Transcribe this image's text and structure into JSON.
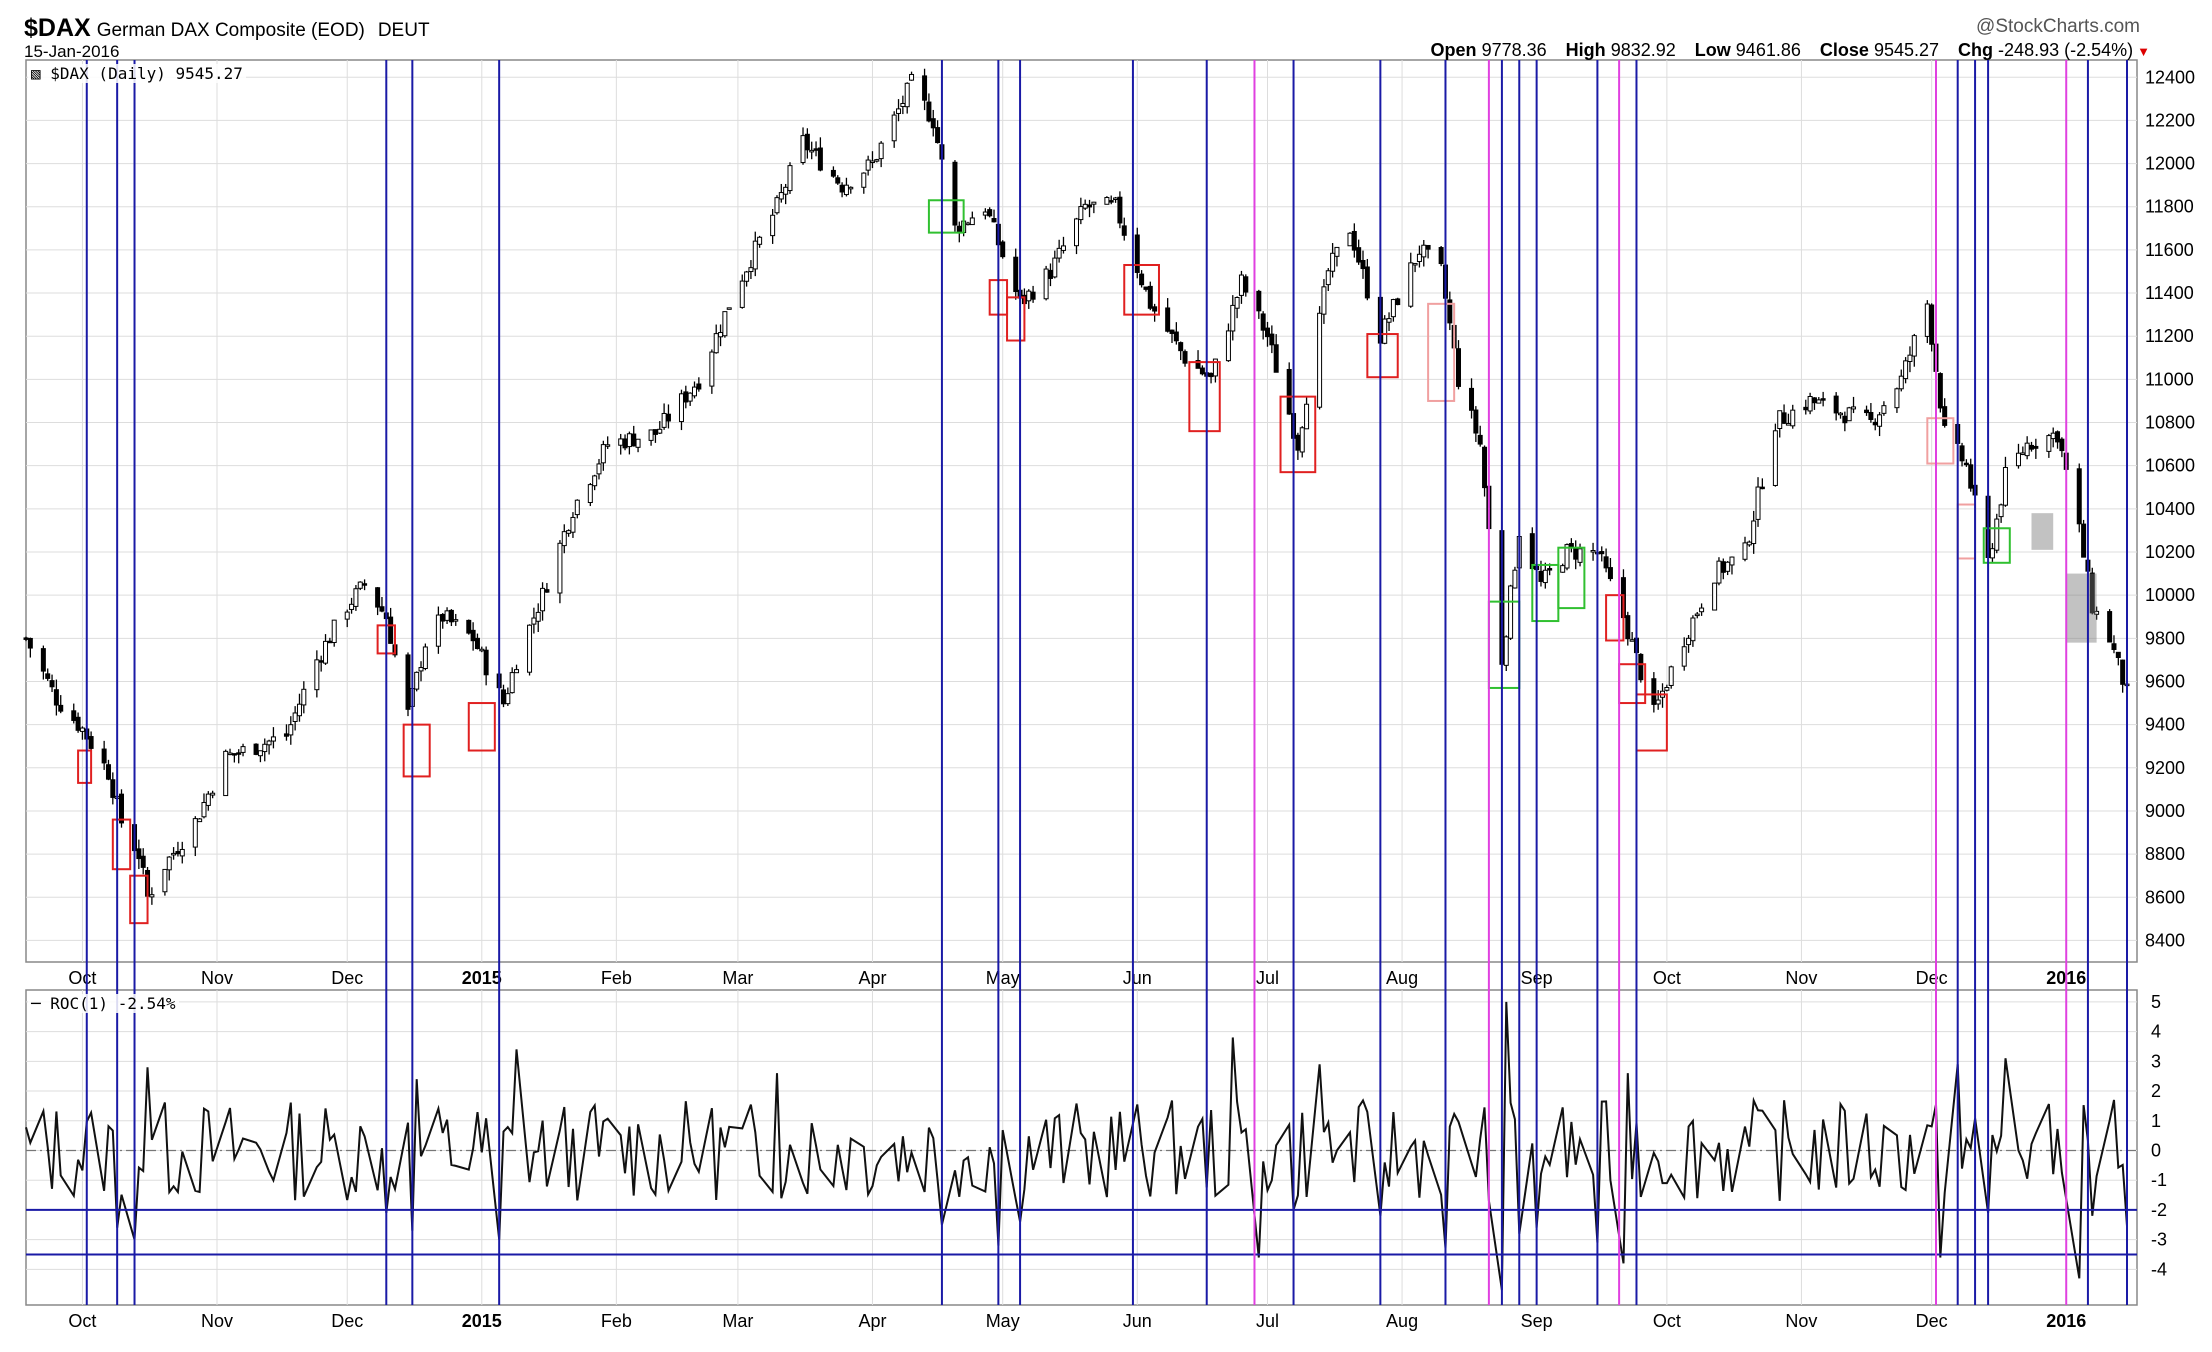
{
  "header": {
    "symbol": "$DAX",
    "name": "German DAX Composite (EOD)",
    "exchange": "DEUT",
    "date": "15-Jan-2016",
    "brand": "@StockCharts.com",
    "open_label": "Open",
    "open": "9778.36",
    "high_label": "High",
    "high": "9832.92",
    "low_label": "Low",
    "low": "9461.86",
    "close_label": "Close",
    "close": "9545.27",
    "chg_label": "Chg",
    "chg": "-248.93 (-2.54%)"
  },
  "price_panel": {
    "legend": "$DAX (Daily) 9545.27"
  },
  "roc_panel": {
    "legend": "ROC(1) -2.54%"
  },
  "colors": {
    "blue_line": "#1a1aa6",
    "magenta_line": "#e040e0",
    "red_box": "#e02020",
    "green_box": "#30c030",
    "pink_box": "#f0a0a0",
    "grey_box": "#999999",
    "candle": "#000000",
    "grid": "#dddddd"
  },
  "chart_data": [
    {
      "type": "candlestick",
      "title": "$DAX German DAX Composite (EOD) DEUT",
      "x_start": "2014-09-18",
      "x_end": "2016-01-15",
      "x_ticks": [
        {
          "date": "2014-10-01",
          "label": "Oct"
        },
        {
          "date": "2014-11-01",
          "label": "Nov"
        },
        {
          "date": "2014-12-01",
          "label": "Dec"
        },
        {
          "date": "2015-01-01",
          "label": "2015"
        },
        {
          "date": "2015-02-01",
          "label": "Feb"
        },
        {
          "date": "2015-03-01",
          "label": "Mar"
        },
        {
          "date": "2015-04-01",
          "label": "Apr"
        },
        {
          "date": "2015-05-01",
          "label": "May"
        },
        {
          "date": "2015-06-01",
          "label": "Jun"
        },
        {
          "date": "2015-07-01",
          "label": "Jul"
        },
        {
          "date": "2015-08-01",
          "label": "Aug"
        },
        {
          "date": "2015-09-01",
          "label": "Sep"
        },
        {
          "date": "2015-10-01",
          "label": "Oct"
        },
        {
          "date": "2015-11-01",
          "label": "Nov"
        },
        {
          "date": "2015-12-01",
          "label": "Dec"
        },
        {
          "date": "2016-01-01",
          "label": "2016"
        }
      ],
      "ylim": [
        8300,
        12480
      ],
      "y_ticks": [
        8400,
        8600,
        8800,
        9000,
        9200,
        9400,
        9600,
        9800,
        10000,
        10200,
        10400,
        10600,
        10800,
        11000,
        11200,
        11400,
        11600,
        11800,
        12000,
        12200,
        12400
      ],
      "close_path": [
        [
          "2014-09-18",
          9800
        ],
        [
          "2014-09-25",
          9520
        ],
        [
          "2014-10-01",
          9380
        ],
        [
          "2014-10-07",
          9180
        ],
        [
          "2014-10-10",
          8950
        ],
        [
          "2014-10-14",
          8800
        ],
        [
          "2014-10-16",
          8600
        ],
        [
          "2014-10-20",
          8750
        ],
        [
          "2014-10-27",
          8950
        ],
        [
          "2014-11-03",
          9250
        ],
        [
          "2014-11-10",
          9300
        ],
        [
          "2014-11-17",
          9350
        ],
        [
          "2014-11-24",
          9700
        ],
        [
          "2014-12-01",
          9950
        ],
        [
          "2014-12-05",
          10050
        ],
        [
          "2014-12-10",
          9900
        ],
        [
          "2014-12-15",
          9450
        ],
        [
          "2014-12-19",
          9780
        ],
        [
          "2014-12-23",
          9900
        ],
        [
          "2014-12-30",
          9800
        ],
        [
          "2015-01-06",
          9500
        ],
        [
          "2015-01-09",
          9700
        ],
        [
          "2015-01-15",
          10000
        ],
        [
          "2015-01-22",
          10400
        ],
        [
          "2015-01-30",
          10700
        ],
        [
          "2015-02-10",
          10750
        ],
        [
          "2015-02-20",
          11000
        ],
        [
          "2015-02-28",
          11400
        ],
        [
          "2015-03-10",
          11800
        ],
        [
          "2015-03-16",
          12100
        ],
        [
          "2015-03-25",
          11900
        ],
        [
          "2015-04-01",
          12000
        ],
        [
          "2015-04-10",
          12370
        ],
        [
          "2015-04-15",
          12200
        ],
        [
          "2015-04-20",
          11700
        ],
        [
          "2015-04-27",
          11800
        ],
        [
          "2015-05-05",
          11350
        ],
        [
          "2015-05-12",
          11500
        ],
        [
          "2015-05-20",
          11800
        ],
        [
          "2015-05-27",
          11800
        ],
        [
          "2015-06-04",
          11350
        ],
        [
          "2015-06-12",
          11100
        ],
        [
          "2015-06-18",
          11000
        ],
        [
          "2015-06-25",
          11450
        ],
        [
          "2015-07-01",
          11200
        ],
        [
          "2015-07-08",
          10700
        ],
        [
          "2015-07-15",
          11500
        ],
        [
          "2015-07-20",
          11700
        ],
        [
          "2015-07-27",
          11200
        ],
        [
          "2015-08-05",
          11600
        ],
        [
          "2015-08-10",
          11500
        ],
        [
          "2015-08-14",
          11000
        ],
        [
          "2015-08-19",
          10700
        ],
        [
          "2015-08-24",
          9700
        ],
        [
          "2015-08-28",
          10300
        ],
        [
          "2015-09-02",
          10050
        ],
        [
          "2015-09-08",
          10200
        ],
        [
          "2015-09-15",
          10200
        ],
        [
          "2015-09-21",
          9900
        ],
        [
          "2015-09-28",
          9450
        ],
        [
          "2015-10-05",
          9800
        ],
        [
          "2015-10-12",
          10100
        ],
        [
          "2015-10-19",
          10200
        ],
        [
          "2015-10-26",
          10800
        ],
        [
          "2015-11-03",
          10900
        ],
        [
          "2015-11-10",
          10850
        ],
        [
          "2015-11-17",
          10800
        ],
        [
          "2015-11-24",
          11000
        ],
        [
          "2015-11-30",
          11350
        ],
        [
          "2015-12-04",
          10750
        ],
        [
          "2015-12-09",
          10600
        ],
        [
          "2015-12-14",
          10150
        ],
        [
          "2015-12-18",
          10550
        ],
        [
          "2015-12-23",
          10700
        ],
        [
          "2015-12-30",
          10750
        ],
        [
          "2016-01-04",
          10300
        ],
        [
          "2016-01-07",
          9950
        ],
        [
          "2016-01-11",
          9800
        ],
        [
          "2016-01-15",
          9545.27
        ]
      ],
      "vertical_lines_blue": [
        "2014-10-02",
        "2014-10-09",
        "2014-10-13",
        "2014-12-10",
        "2014-12-16",
        "2015-01-05",
        "2015-04-17",
        "2015-04-30",
        "2015-05-05",
        "2015-05-31",
        "2015-06-17",
        "2015-07-07",
        "2015-07-27",
        "2015-08-11",
        "2015-08-24",
        "2015-08-28",
        "2015-09-01",
        "2015-09-15",
        "2015-09-24",
        "2015-12-07",
        "2015-12-11",
        "2015-12-14",
        "2016-01-06",
        "2016-01-15"
      ],
      "vertical_lines_magenta": [
        "2015-06-28",
        "2015-08-21",
        "2015-09-20",
        "2015-12-02",
        "2016-01-01"
      ],
      "boxes": [
        {
          "d1": "2014-09-30",
          "d2": "2014-10-03",
          "lo": 9130,
          "hi": 9280,
          "color": "red"
        },
        {
          "d1": "2014-10-08",
          "d2": "2014-10-12",
          "lo": 8730,
          "hi": 8960,
          "color": "red"
        },
        {
          "d1": "2014-10-12",
          "d2": "2014-10-16",
          "lo": 8480,
          "hi": 8700,
          "color": "red"
        },
        {
          "d1": "2014-12-08",
          "d2": "2014-12-12",
          "lo": 9730,
          "hi": 9860,
          "color": "red"
        },
        {
          "d1": "2014-12-14",
          "d2": "2014-12-20",
          "lo": 9160,
          "hi": 9400,
          "color": "red"
        },
        {
          "d1": "2014-12-29",
          "d2": "2015-01-04",
          "lo": 9280,
          "hi": 9500,
          "color": "red"
        },
        {
          "d1": "2015-04-14",
          "d2": "2015-04-22",
          "lo": 11680,
          "hi": 11830,
          "color": "green"
        },
        {
          "d1": "2015-04-28",
          "d2": "2015-05-02",
          "lo": 11300,
          "hi": 11460,
          "color": "red"
        },
        {
          "d1": "2015-05-02",
          "d2": "2015-05-06",
          "lo": 11180,
          "hi": 11380,
          "color": "red"
        },
        {
          "d1": "2015-05-29",
          "d2": "2015-06-06",
          "lo": 11300,
          "hi": 11530,
          "color": "red"
        },
        {
          "d1": "2015-06-13",
          "d2": "2015-06-20",
          "lo": 10760,
          "hi": 11080,
          "color": "red"
        },
        {
          "d1": "2015-07-04",
          "d2": "2015-07-12",
          "lo": 10570,
          "hi": 10920,
          "color": "red"
        },
        {
          "d1": "2015-07-24",
          "d2": "2015-07-31",
          "lo": 11010,
          "hi": 11210,
          "color": "red"
        },
        {
          "d1": "2015-08-07",
          "d2": "2015-08-13",
          "lo": 10900,
          "hi": 11350,
          "color": "pink"
        },
        {
          "d1": "2015-08-21",
          "d2": "2015-08-28",
          "lo": 9570,
          "hi": 9970,
          "color": "green"
        },
        {
          "d1": "2015-08-31",
          "d2": "2015-09-06",
          "lo": 9880,
          "hi": 10140,
          "color": "green"
        },
        {
          "d1": "2015-09-06",
          "d2": "2015-09-12",
          "lo": 9940,
          "hi": 10220,
          "color": "green"
        },
        {
          "d1": "2015-09-17",
          "d2": "2015-09-21",
          "lo": 9790,
          "hi": 10000,
          "color": "red"
        },
        {
          "d1": "2015-09-20",
          "d2": "2015-09-26",
          "lo": 9500,
          "hi": 9680,
          "color": "red"
        },
        {
          "d1": "2015-09-24",
          "d2": "2015-10-01",
          "lo": 9280,
          "hi": 9540,
          "color": "red"
        },
        {
          "d1": "2015-11-30",
          "d2": "2015-12-06",
          "lo": 10610,
          "hi": 10820,
          "color": "pink"
        },
        {
          "d1": "2015-12-07",
          "d2": "2015-12-11",
          "lo": 10170,
          "hi": 10420,
          "color": "pink"
        },
        {
          "d1": "2015-12-13",
          "d2": "2015-12-19",
          "lo": 10150,
          "hi": 10310,
          "color": "green"
        },
        {
          "d1": "2015-12-24",
          "d2": "2015-12-29",
          "lo": 10210,
          "hi": 10380,
          "color": "grey"
        },
        {
          "d1": "2016-01-01",
          "d2": "2016-01-08",
          "lo": 9780,
          "hi": 10100,
          "color": "grey"
        }
      ]
    },
    {
      "type": "line",
      "title": "ROC(1) -2.54%",
      "ylim": [
        -5.2,
        5.4
      ],
      "y_ticks": [
        5,
        4,
        3,
        2,
        1,
        0,
        -1,
        -2,
        -3,
        -4
      ],
      "zero_line": 0,
      "horizontal_lines": [
        -2,
        -3.5
      ],
      "spikes": [
        [
          "2014-10-09",
          -2.6
        ],
        [
          "2014-10-13",
          -3.0
        ],
        [
          "2014-10-16",
          2.8
        ],
        [
          "2014-12-10",
          -2.1
        ],
        [
          "2014-12-16",
          -2.7
        ],
        [
          "2014-12-17",
          2.4
        ],
        [
          "2015-01-05",
          -3.0
        ],
        [
          "2015-01-09",
          3.4
        ],
        [
          "2015-03-10",
          2.6
        ],
        [
          "2015-04-17",
          -2.5
        ],
        [
          "2015-04-30",
          -3.2
        ],
        [
          "2015-05-05",
          -2.4
        ],
        [
          "2015-05-31",
          -2.4
        ],
        [
          "2015-06-29",
          -3.6
        ],
        [
          "2015-06-23",
          3.8
        ],
        [
          "2015-07-07",
          -2.0
        ],
        [
          "2015-07-13",
          2.9
        ],
        [
          "2015-07-27",
          -2.2
        ],
        [
          "2015-08-11",
          -3.3
        ],
        [
          "2015-08-24",
          -4.7
        ],
        [
          "2015-08-25",
          5.0
        ],
        [
          "2015-08-28",
          -2.8
        ],
        [
          "2015-09-01",
          -2.6
        ],
        [
          "2015-09-15",
          -3.1
        ],
        [
          "2015-09-21",
          -3.8
        ],
        [
          "2015-09-22",
          2.6
        ],
        [
          "2015-12-03",
          -3.6
        ],
        [
          "2015-12-07",
          2.9
        ],
        [
          "2015-12-14",
          -2.1
        ],
        [
          "2015-12-18",
          3.1
        ],
        [
          "2016-01-04",
          -4.3
        ],
        [
          "2016-01-07",
          -2.2
        ],
        [
          "2016-01-12",
          1.7
        ],
        [
          "2016-01-15",
          -2.54
        ]
      ]
    }
  ]
}
